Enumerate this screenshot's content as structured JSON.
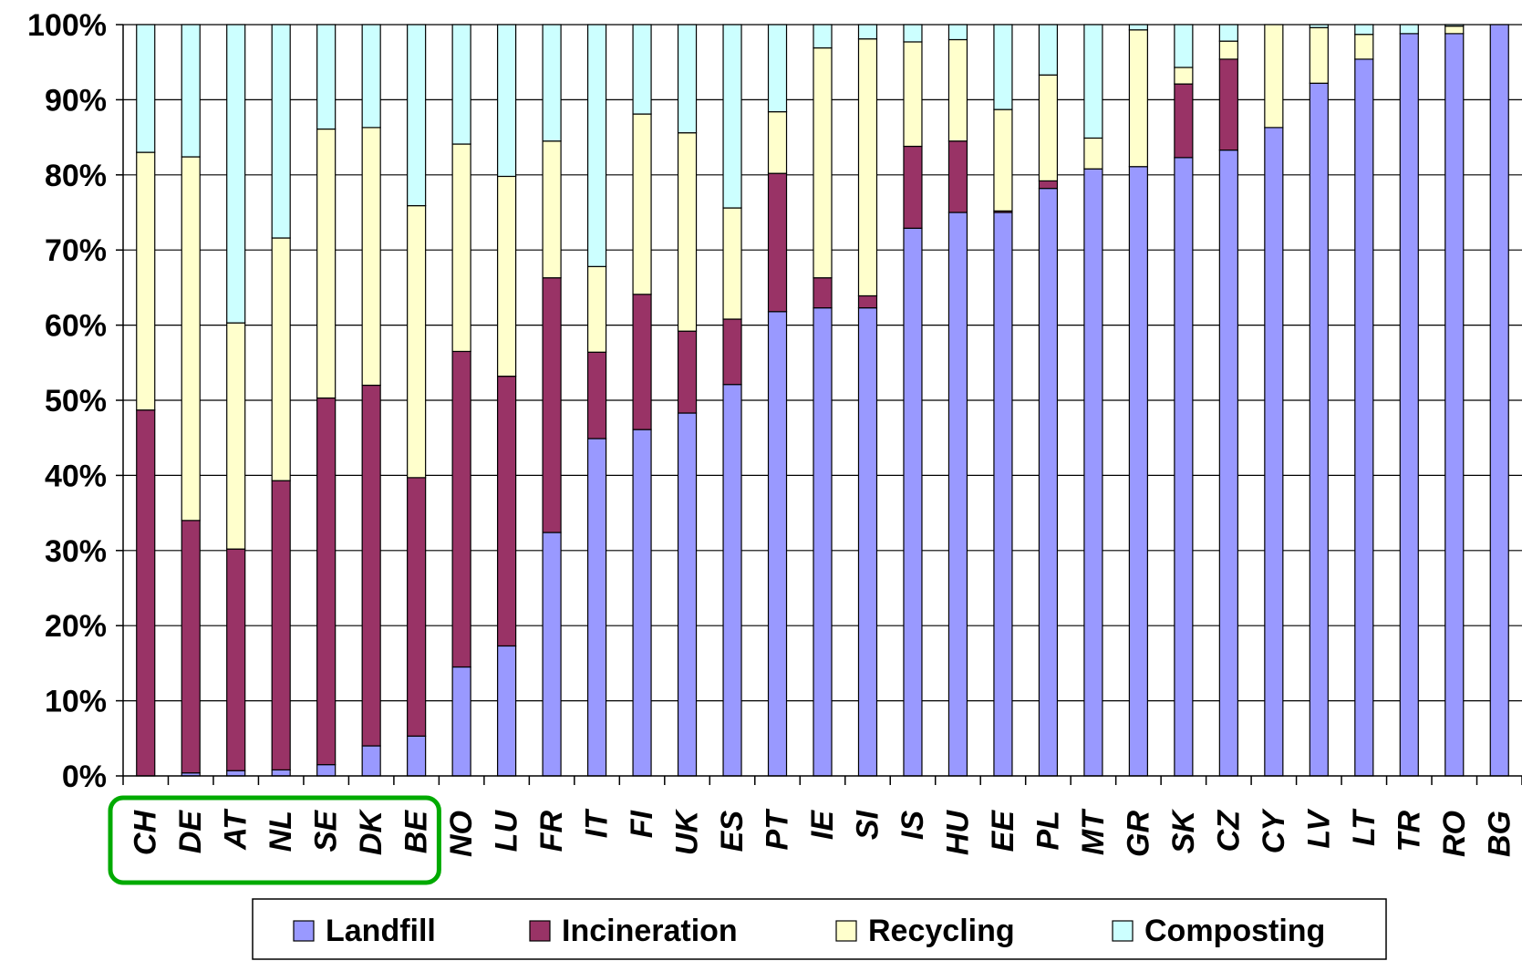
{
  "chart_data": {
    "type": "bar",
    "stacked": true,
    "percent_stacked": true,
    "categories": [
      "CH",
      "DE",
      "AT",
      "NL",
      "SE",
      "DK",
      "BE",
      "NO",
      "LU",
      "FR",
      "IT",
      "FI",
      "UK",
      "ES",
      "PT",
      "IE",
      "SI",
      "IS",
      "HU",
      "EE",
      "PL",
      "MT",
      "GR",
      "SK",
      "CZ",
      "CY",
      "LV",
      "LT",
      "TR",
      "RO",
      "BG"
    ],
    "series": [
      {
        "name": "Landfill",
        "color": "#9999ff",
        "values": [
          0,
          0.4,
          0.7,
          0.8,
          1.5,
          4,
          5.3,
          14.5,
          17.3,
          32.4,
          44.9,
          46.1,
          48.3,
          52.1,
          61.8,
          62.3,
          62.3,
          72.9,
          75,
          75,
          78.2,
          80.8,
          81.1,
          82.3,
          83.3,
          86.3,
          92.2,
          95.4,
          98.8,
          98.8,
          100
        ]
      },
      {
        "name": "Incineration",
        "color": "#993366",
        "values": [
          48.7,
          33.6,
          29.5,
          38.5,
          48.8,
          48,
          34.4,
          42,
          35.9,
          33.9,
          11.5,
          18,
          10.9,
          8.7,
          18.4,
          4,
          1.6,
          10.9,
          9.5,
          0.2,
          1,
          0,
          0,
          9.8,
          12.1,
          0,
          0,
          0,
          0,
          0,
          0
        ]
      },
      {
        "name": "Recycling",
        "color": "#ffffcc",
        "values": [
          34.3,
          48.4,
          30.1,
          32.3,
          35.8,
          34.3,
          36.2,
          27.6,
          26.6,
          18.2,
          11.4,
          24,
          26.4,
          14.8,
          8.2,
          30.6,
          34.2,
          13.9,
          13.5,
          13.5,
          14.1,
          4.1,
          18.2,
          2.2,
          2.4,
          13.7,
          7.4,
          3.3,
          0,
          1,
          0
        ]
      },
      {
        "name": "Composting",
        "color": "#ccffff",
        "values": [
          17,
          17.6,
          39.7,
          28.4,
          13.9,
          13.7,
          24.1,
          15.9,
          20.2,
          15.5,
          32.2,
          11.9,
          14.4,
          24.4,
          11.6,
          3.1,
          1.9,
          2.3,
          2,
          11.3,
          6.7,
          15.1,
          0.7,
          5.7,
          2.2,
          0,
          0.4,
          1.3,
          1.2,
          0.2,
          0
        ]
      }
    ],
    "y_axis": {
      "min": 0,
      "max": 100,
      "step": 10,
      "tick_labels": [
        "0%",
        "10%",
        "20%",
        "30%",
        "40%",
        "50%",
        "60%",
        "70%",
        "80%",
        "90%",
        "100%"
      ]
    },
    "grid": true,
    "legend": {
      "position": "bottom"
    },
    "highlight": {
      "categories": [
        "CH",
        "DE",
        "AT",
        "NL",
        "SE",
        "DK",
        "BE"
      ],
      "color": "#00aa00"
    },
    "title": "",
    "xlabel": "",
    "ylabel": ""
  }
}
